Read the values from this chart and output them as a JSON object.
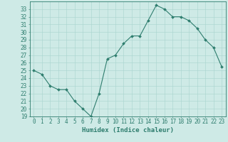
{
  "x": [
    0,
    1,
    2,
    3,
    4,
    5,
    6,
    7,
    8,
    9,
    10,
    11,
    12,
    13,
    14,
    15,
    16,
    17,
    18,
    19,
    20,
    21,
    22,
    23
  ],
  "y": [
    25.0,
    24.5,
    23.0,
    22.5,
    22.5,
    21.0,
    20.0,
    19.0,
    22.0,
    26.5,
    27.0,
    28.5,
    29.5,
    29.5,
    31.5,
    33.5,
    33.0,
    32.0,
    32.0,
    31.5,
    30.5,
    29.0,
    28.0,
    25.5
  ],
  "line_color": "#2e7d6e",
  "marker": "D",
  "marker_size": 2,
  "bg_color": "#ceeae6",
  "grid_color": "#a8d4ce",
  "xlabel": "Humidex (Indice chaleur)",
  "xlim": [
    -0.5,
    23.5
  ],
  "ylim": [
    19,
    34
  ],
  "yticks": [
    19,
    20,
    21,
    22,
    23,
    24,
    25,
    26,
    27,
    28,
    29,
    30,
    31,
    32,
    33
  ],
  "xticks": [
    0,
    1,
    2,
    3,
    4,
    5,
    6,
    7,
    8,
    9,
    10,
    11,
    12,
    13,
    14,
    15,
    16,
    17,
    18,
    19,
    20,
    21,
    22,
    23
  ],
  "tick_color": "#2e7d6e",
  "axis_color": "#2e7d6e",
  "label_fontsize": 5.5,
  "xlabel_fontsize": 6.5
}
